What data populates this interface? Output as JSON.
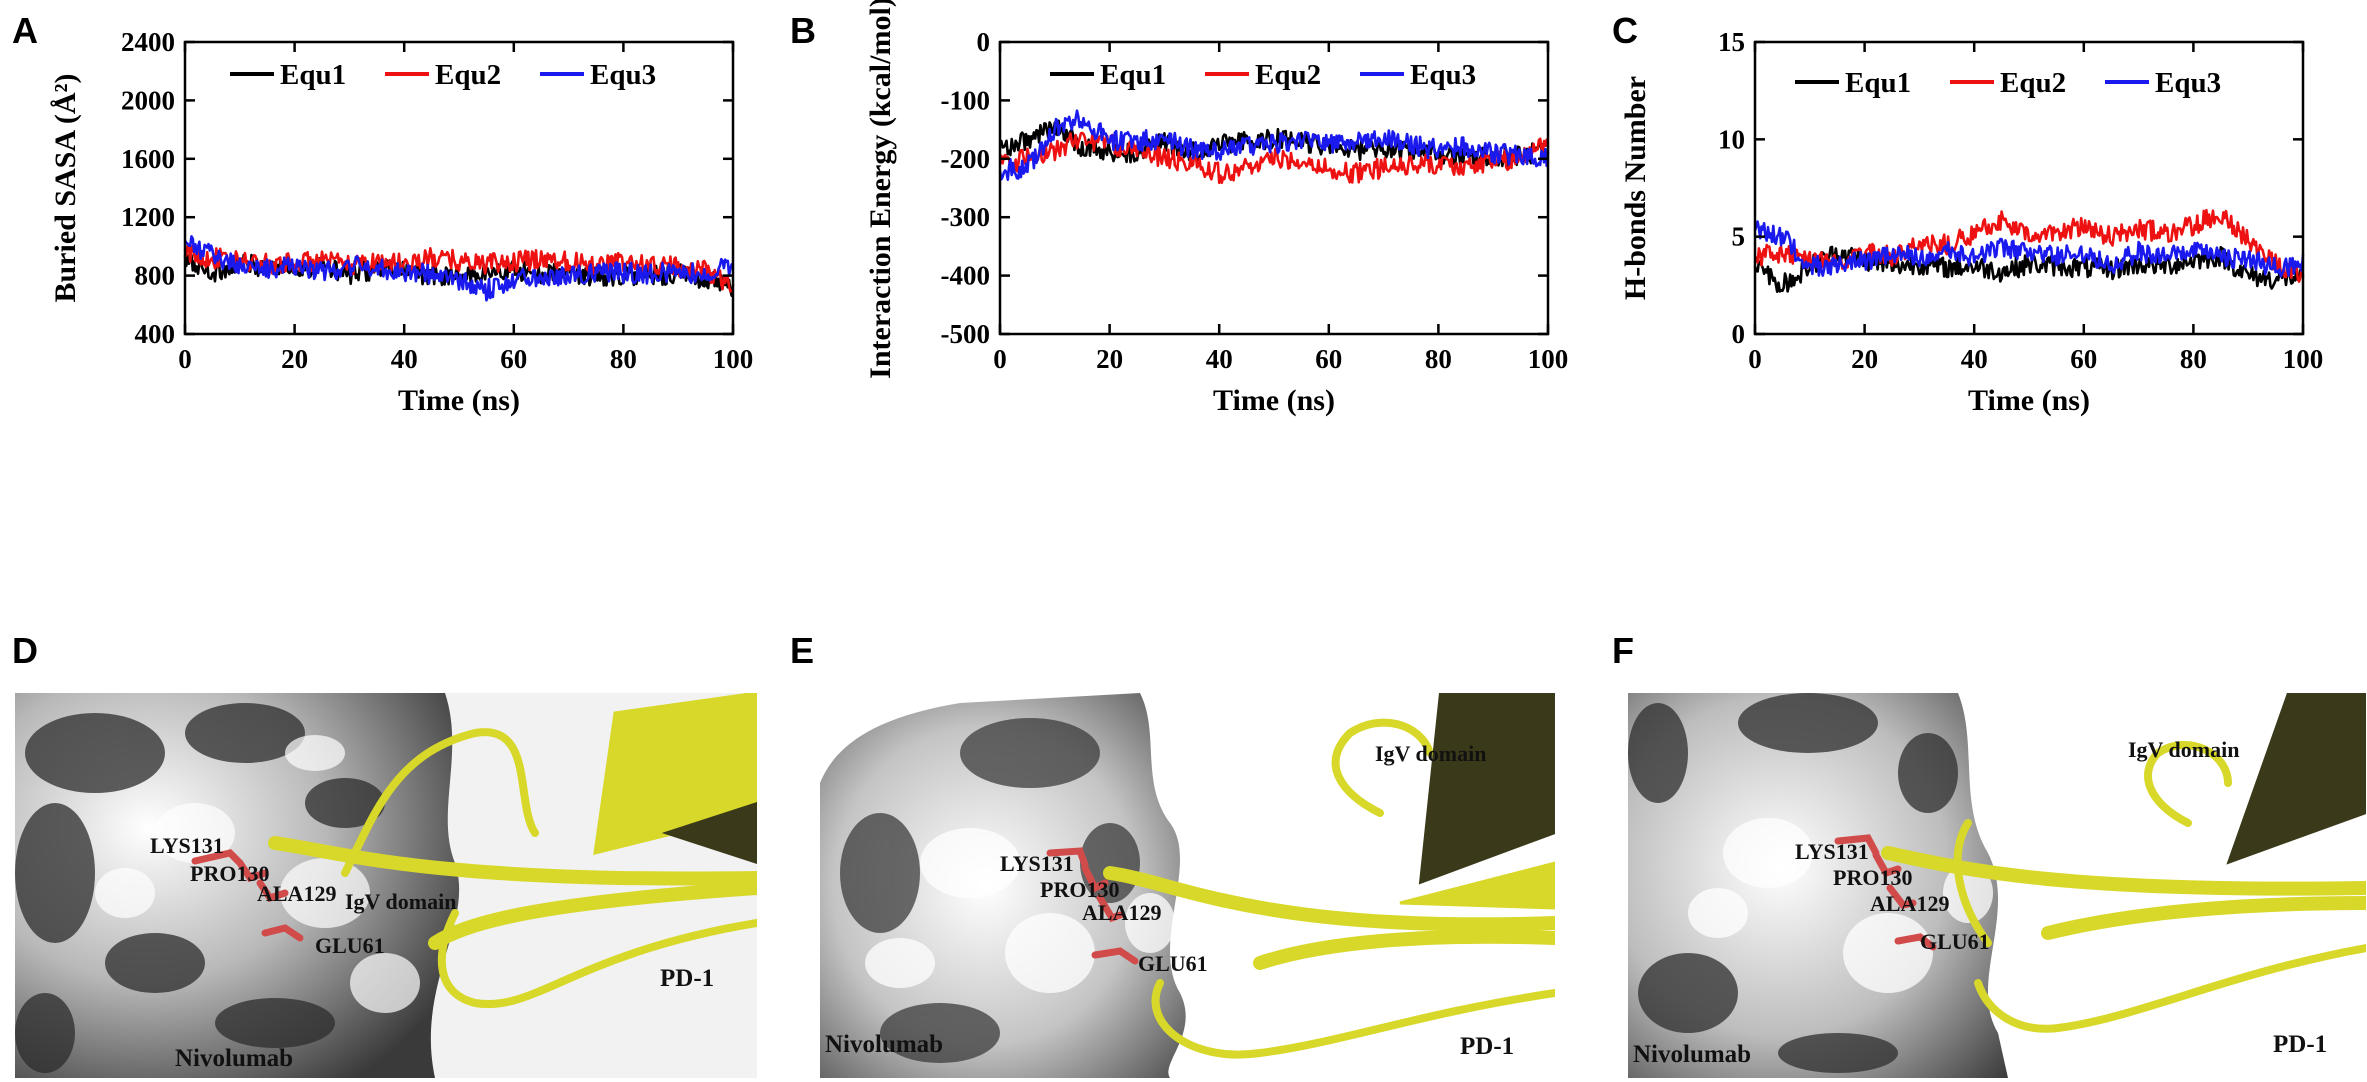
{
  "panel_letters": [
    "A",
    "B",
    "C",
    "D",
    "E",
    "F"
  ],
  "legend_labels": [
    "Equ1",
    "Equ2",
    "Equ3"
  ],
  "colors": {
    "equ1": "#000000",
    "equ2": "#ee1111",
    "equ3": "#1a1aee",
    "ribbon": "#d8d82a",
    "residue": "#d24b4b"
  },
  "chart_data": [
    {
      "type": "line",
      "id": "A",
      "xlabel": "Time (ns)",
      "ylabel": "Buried SASA (Å²)",
      "xlim": [
        0,
        100
      ],
      "ylim": [
        400,
        2400
      ],
      "xticks": [
        0,
        20,
        40,
        60,
        80,
        100
      ],
      "yticks": [
        400,
        800,
        1200,
        1600,
        2000,
        2400
      ],
      "series": [
        {
          "name": "Equ1",
          "x": [
            0,
            5,
            10,
            15,
            20,
            25,
            30,
            35,
            40,
            45,
            50,
            55,
            60,
            65,
            70,
            75,
            80,
            85,
            90,
            95,
            100
          ],
          "values": [
            900,
            820,
            880,
            860,
            850,
            870,
            800,
            850,
            830,
            800,
            790,
            820,
            840,
            810,
            820,
            790,
            800,
            800,
            810,
            780,
            700
          ]
        },
        {
          "name": "Equ2",
          "x": [
            0,
            5,
            10,
            15,
            20,
            25,
            30,
            35,
            40,
            45,
            50,
            55,
            60,
            65,
            70,
            75,
            80,
            85,
            90,
            95,
            100
          ],
          "values": [
            950,
            920,
            900,
            880,
            890,
            900,
            870,
            900,
            880,
            920,
            900,
            880,
            890,
            920,
            900,
            880,
            890,
            870,
            860,
            840,
            730
          ]
        },
        {
          "name": "Equ3",
          "x": [
            0,
            5,
            10,
            15,
            20,
            25,
            30,
            35,
            40,
            45,
            50,
            55,
            60,
            65,
            70,
            75,
            80,
            85,
            90,
            95,
            100
          ],
          "values": [
            1020,
            940,
            870,
            840,
            880,
            820,
            870,
            850,
            830,
            810,
            760,
            700,
            780,
            800,
            800,
            820,
            820,
            810,
            830,
            800,
            880
          ]
        }
      ]
    },
    {
      "type": "line",
      "id": "B",
      "xlabel": "Time (ns)",
      "ylabel": "Interaction Energy (kcal/mol)",
      "xlim": [
        0,
        100
      ],
      "ylim": [
        -500,
        0
      ],
      "xticks": [
        0,
        20,
        40,
        60,
        80,
        100
      ],
      "yticks": [
        0,
        -100,
        -200,
        -300,
        -400,
        -500
      ],
      "series": [
        {
          "name": "Equ1",
          "x": [
            0,
            5,
            10,
            15,
            20,
            25,
            30,
            35,
            40,
            45,
            50,
            55,
            60,
            65,
            70,
            75,
            80,
            85,
            90,
            95,
            100
          ],
          "values": [
            -180,
            -170,
            -140,
            -180,
            -190,
            -190,
            -170,
            -190,
            -175,
            -170,
            -165,
            -170,
            -180,
            -185,
            -180,
            -190,
            -190,
            -200,
            -195,
            -195,
            -185
          ]
        },
        {
          "name": "Equ2",
          "x": [
            0,
            5,
            10,
            15,
            20,
            25,
            30,
            35,
            40,
            45,
            50,
            55,
            60,
            65,
            70,
            75,
            80,
            85,
            90,
            95,
            100
          ],
          "values": [
            -210,
            -200,
            -185,
            -165,
            -175,
            -185,
            -200,
            -205,
            -225,
            -215,
            -200,
            -200,
            -220,
            -225,
            -215,
            -210,
            -210,
            -215,
            -205,
            -200,
            -170
          ]
        },
        {
          "name": "Equ3",
          "x": [
            0,
            5,
            10,
            15,
            20,
            25,
            30,
            35,
            40,
            45,
            50,
            55,
            60,
            65,
            70,
            75,
            80,
            85,
            90,
            95,
            100
          ],
          "values": [
            -220,
            -215,
            -150,
            -130,
            -170,
            -170,
            -165,
            -185,
            -190,
            -180,
            -175,
            -170,
            -175,
            -170,
            -165,
            -175,
            -185,
            -180,
            -190,
            -195,
            -200
          ]
        }
      ]
    },
    {
      "type": "line",
      "id": "C",
      "xlabel": "Time (ns)",
      "ylabel": "H-bonds Number",
      "xlim": [
        0,
        100
      ],
      "ylim": [
        0,
        15
      ],
      "xticks": [
        0,
        20,
        40,
        60,
        80,
        100
      ],
      "yticks": [
        0,
        5,
        10,
        15
      ],
      "series": [
        {
          "name": "Equ1",
          "x": [
            0,
            5,
            10,
            15,
            20,
            25,
            30,
            35,
            40,
            45,
            50,
            55,
            60,
            65,
            70,
            75,
            80,
            85,
            90,
            95,
            100
          ],
          "values": [
            3.5,
            2.5,
            3.5,
            4.2,
            3.8,
            3.5,
            3.6,
            3.4,
            3.5,
            3.2,
            3.6,
            3.5,
            3.4,
            3.3,
            3.6,
            3.5,
            3.8,
            4.0,
            3.0,
            2.8,
            3.0
          ]
        },
        {
          "name": "Equ2",
          "x": [
            0,
            5,
            10,
            15,
            20,
            25,
            30,
            35,
            40,
            45,
            50,
            55,
            60,
            65,
            70,
            75,
            80,
            85,
            90,
            95,
            100
          ],
          "values": [
            4.0,
            4.2,
            3.8,
            3.5,
            4.2,
            4.0,
            4.5,
            4.6,
            5.2,
            5.8,
            5.0,
            5.2,
            5.6,
            5.0,
            5.4,
            5.2,
            5.6,
            6.2,
            4.8,
            3.6,
            3.0
          ]
        },
        {
          "name": "Equ3",
          "x": [
            0,
            5,
            10,
            15,
            20,
            25,
            30,
            35,
            40,
            45,
            50,
            55,
            60,
            65,
            70,
            75,
            80,
            85,
            90,
            95,
            100
          ],
          "values": [
            5.5,
            5.0,
            3.5,
            3.5,
            3.8,
            4.0,
            4.0,
            4.2,
            4.0,
            4.4,
            4.2,
            4.0,
            4.2,
            3.6,
            4.2,
            4.0,
            4.2,
            4.0,
            3.8,
            3.4,
            3.6
          ]
        }
      ]
    }
  ],
  "structures": [
    {
      "id": "D",
      "labels": {
        "lys": "LYS131",
        "pro": "PRO130",
        "ala": "ALA129",
        "glu": "GLU61",
        "igv": "IgV domain",
        "pd1": "PD-1",
        "nivo": "Nivolumab"
      }
    },
    {
      "id": "E",
      "labels": {
        "lys": "LYS131",
        "pro": "PRO130",
        "ala": "ALA129",
        "glu": "GLU61",
        "igv": "IgV domain",
        "pd1": "PD-1",
        "nivo": "Nivolumab"
      }
    },
    {
      "id": "F",
      "labels": {
        "lys": "LYS131",
        "pro": "PRO130",
        "ala": "ALA129",
        "glu": "GLU61",
        "igv": "IgV domain",
        "pd1": "PD-1",
        "nivo": "Nivolumab"
      }
    }
  ]
}
